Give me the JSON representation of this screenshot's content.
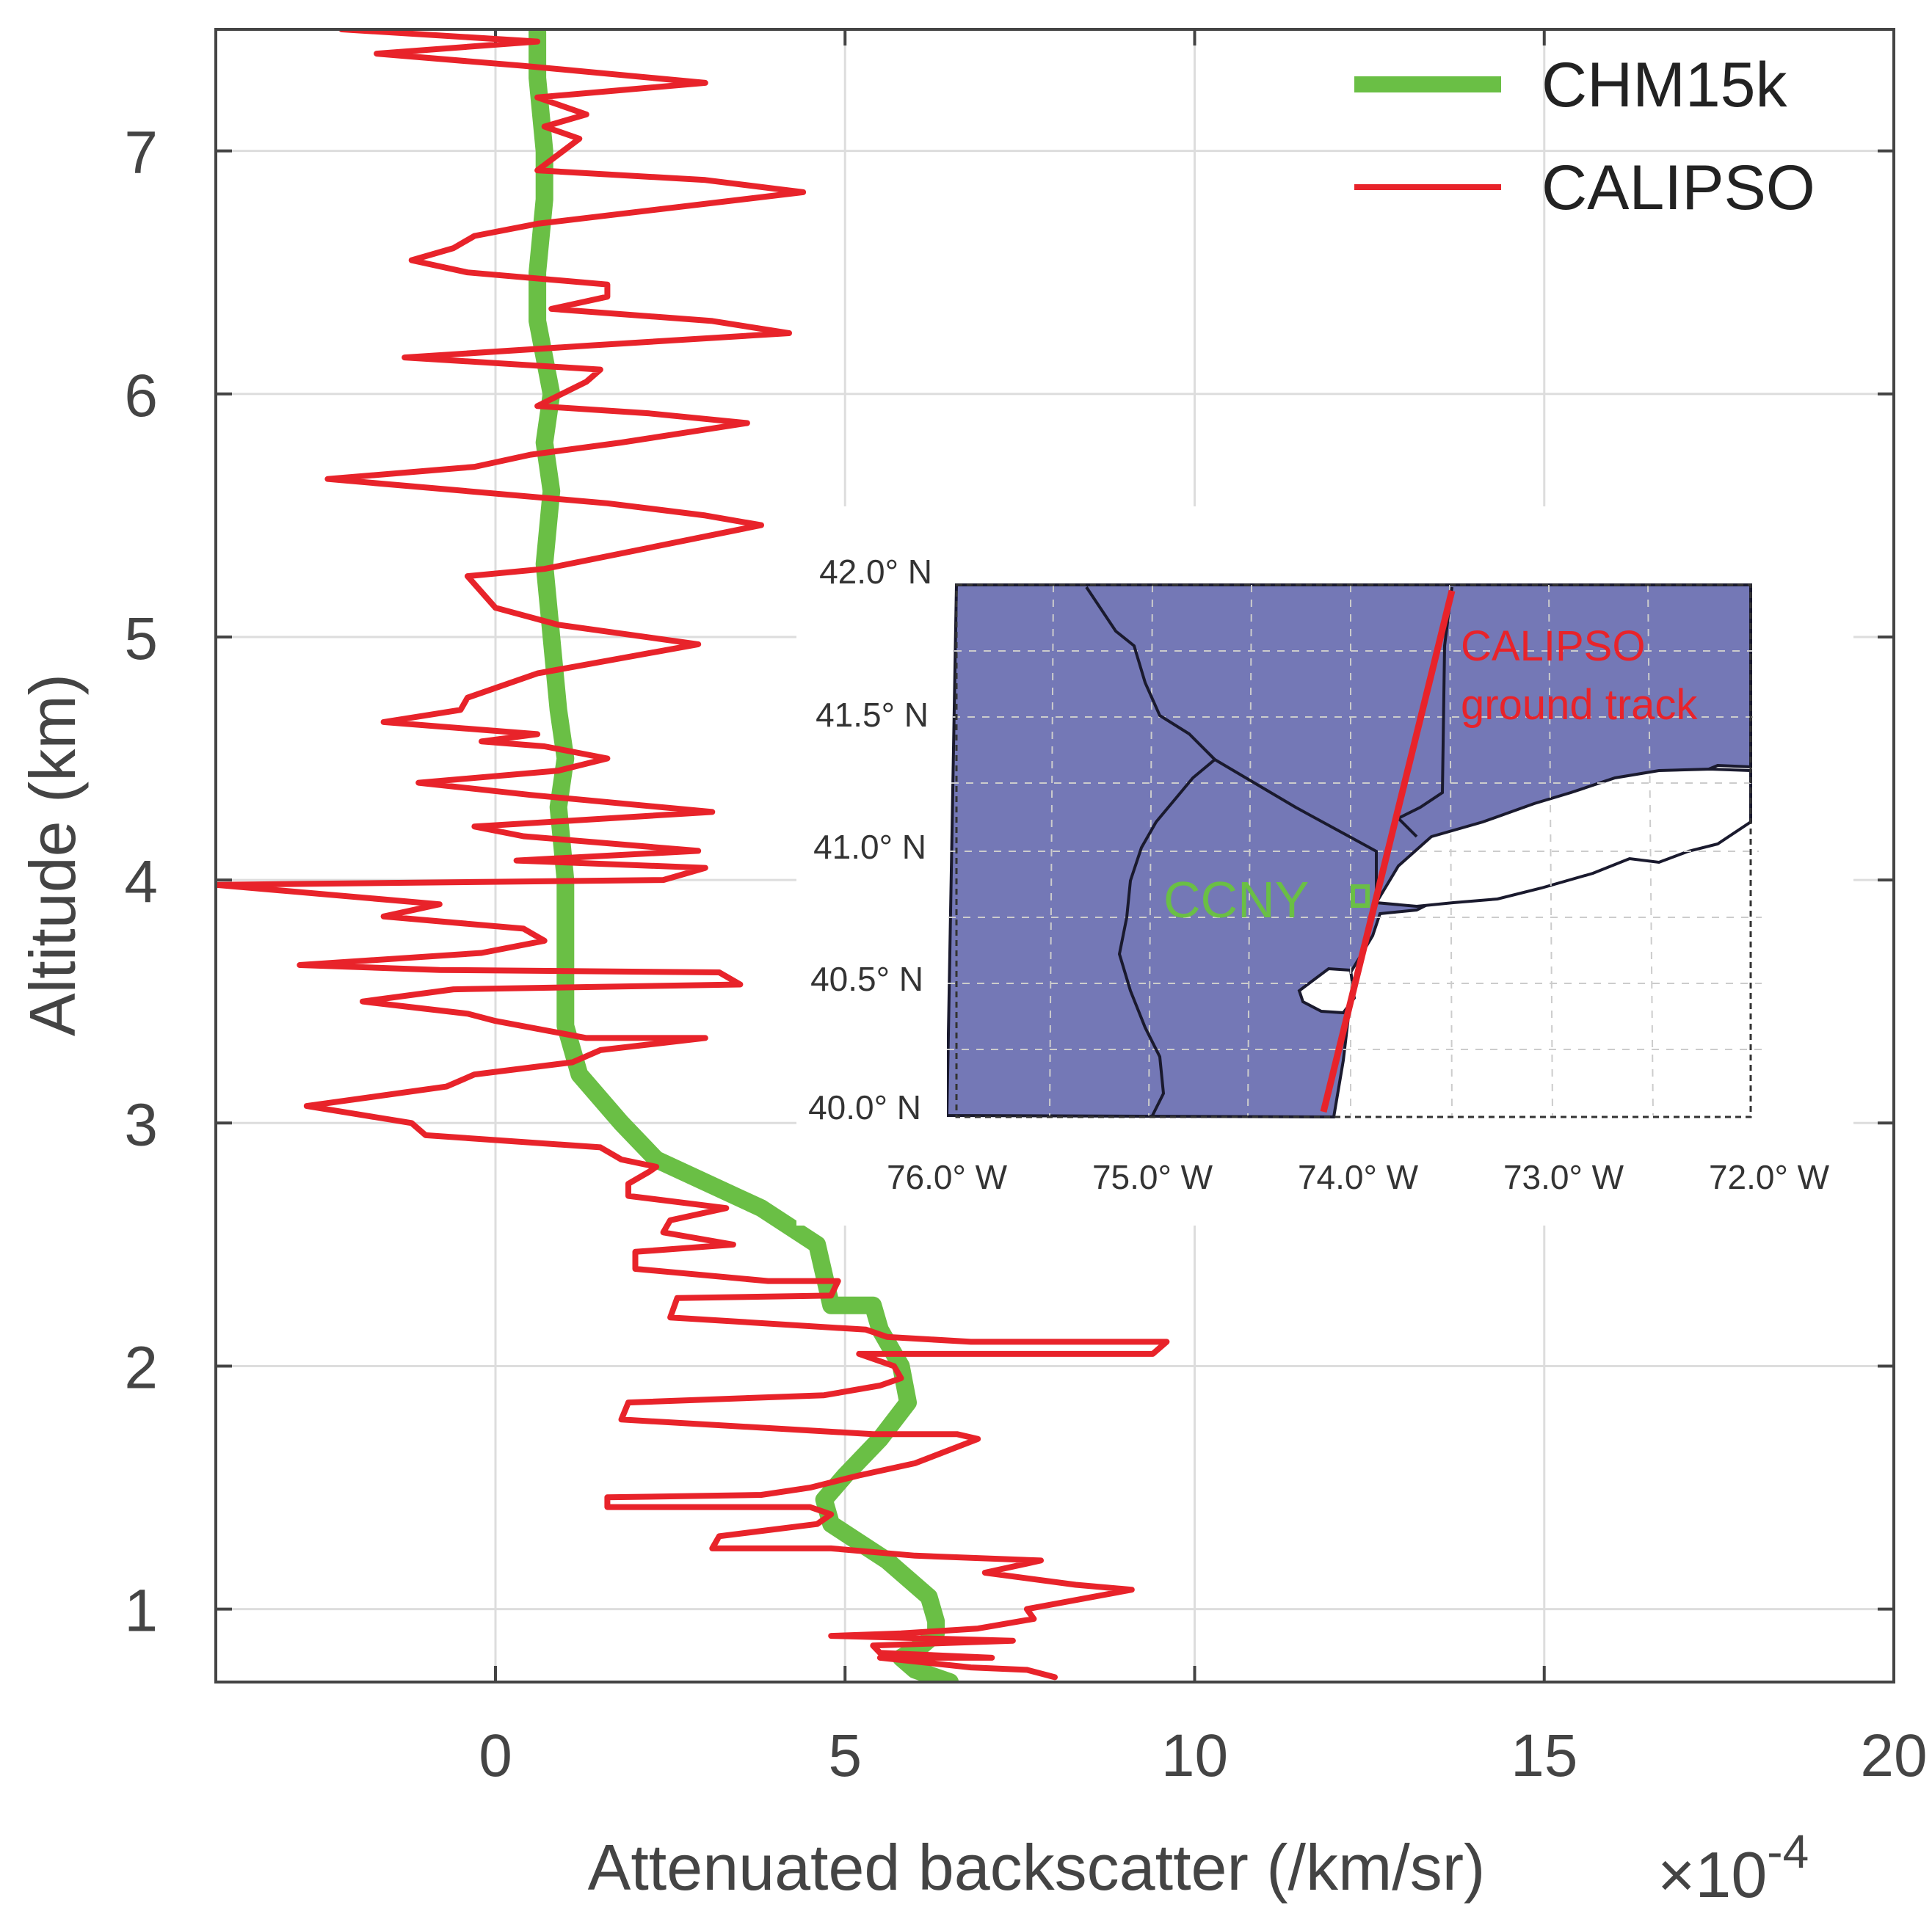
{
  "chart_data": [
    {
      "type": "line",
      "title": "",
      "xlabel": "Attenuated backscatter (/km/sr)",
      "x_exponent_label": "×10",
      "x_exponent_power": "-4",
      "ylabel": "Altitude (km)",
      "xlim": [
        -4.0,
        20.0
      ],
      "ylim": [
        0.7,
        7.5
      ],
      "xticks": [
        0,
        5,
        10,
        15,
        20
      ],
      "yticks": [
        1,
        2,
        3,
        4,
        5,
        6,
        7
      ],
      "xtick_labels": [
        "0",
        "5",
        "10",
        "15",
        "20"
      ],
      "ytick_labels": [
        "1",
        "2",
        "3",
        "4",
        "5",
        "6",
        "7"
      ],
      "grid": true,
      "legend_position": "top-right",
      "series": [
        {
          "name": "CHM15k",
          "color": "#6abf45",
          "points": [
            [
              6.5,
              0.7
            ],
            [
              6.0,
              0.75
            ],
            [
              5.8,
              0.8
            ],
            [
              6.1,
              0.85
            ],
            [
              6.3,
              0.9
            ],
            [
              6.3,
              0.95
            ],
            [
              6.2,
              1.05
            ],
            [
              5.6,
              1.2
            ],
            [
              4.8,
              1.35
            ],
            [
              4.7,
              1.45
            ],
            [
              5.0,
              1.55
            ],
            [
              5.5,
              1.7
            ],
            [
              5.9,
              1.85
            ],
            [
              5.8,
              2.0
            ],
            [
              5.5,
              2.15
            ],
            [
              5.4,
              2.25
            ],
            [
              4.8,
              2.25
            ],
            [
              4.6,
              2.5
            ],
            [
              3.8,
              2.65
            ],
            [
              2.3,
              2.85
            ],
            [
              1.8,
              3.0
            ],
            [
              1.2,
              3.2
            ],
            [
              1.0,
              3.4
            ],
            [
              1.0,
              3.6
            ],
            [
              1.0,
              4.0
            ],
            [
              0.9,
              4.3
            ],
            [
              1.0,
              4.5
            ],
            [
              0.9,
              4.7
            ],
            [
              0.8,
              5.0
            ],
            [
              0.7,
              5.3
            ],
            [
              0.8,
              5.6
            ],
            [
              0.7,
              5.8
            ],
            [
              0.8,
              6.0
            ],
            [
              0.6,
              6.3
            ],
            [
              0.6,
              6.5
            ],
            [
              0.7,
              6.8
            ],
            [
              0.7,
              7.0
            ],
            [
              0.6,
              7.3
            ],
            [
              0.6,
              7.5
            ]
          ]
        },
        {
          "name": "CALIPSO",
          "color": "#e8232a",
          "points": [
            [
              8.0,
              0.72
            ],
            [
              7.6,
              0.75
            ],
            [
              6.8,
              0.76
            ],
            [
              5.5,
              0.8
            ],
            [
              7.1,
              0.8
            ],
            [
              5.5,
              0.82
            ],
            [
              5.4,
              0.85
            ],
            [
              7.4,
              0.87
            ],
            [
              4.8,
              0.89
            ],
            [
              5.8,
              0.9
            ],
            [
              6.9,
              0.92
            ],
            [
              7.7,
              0.96
            ],
            [
              7.6,
              1.0
            ],
            [
              9.1,
              1.08
            ],
            [
              8.3,
              1.1
            ],
            [
              7.0,
              1.15
            ],
            [
              7.8,
              1.2
            ],
            [
              6.0,
              1.22
            ],
            [
              4.8,
              1.25
            ],
            [
              3.1,
              1.25
            ],
            [
              3.2,
              1.3
            ],
            [
              4.6,
              1.35
            ],
            [
              4.8,
              1.39
            ],
            [
              4.5,
              1.42
            ],
            [
              1.6,
              1.42
            ],
            [
              1.6,
              1.46
            ],
            [
              3.8,
              1.47
            ],
            [
              4.5,
              1.5
            ],
            [
              5.2,
              1.55
            ],
            [
              6.0,
              1.6
            ],
            [
              6.9,
              1.7
            ],
            [
              6.6,
              1.72
            ],
            [
              5.4,
              1.72
            ],
            [
              1.8,
              1.78
            ],
            [
              1.9,
              1.85
            ],
            [
              4.7,
              1.88
            ],
            [
              5.5,
              1.92
            ],
            [
              5.8,
              1.95
            ],
            [
              5.7,
              2.0
            ],
            [
              5.2,
              2.05
            ],
            [
              9.4,
              2.05
            ],
            [
              9.6,
              2.1
            ],
            [
              6.8,
              2.1
            ],
            [
              5.6,
              2.12
            ],
            [
              5.3,
              2.15
            ],
            [
              2.5,
              2.2
            ],
            [
              2.6,
              2.28
            ],
            [
              4.8,
              2.29
            ],
            [
              4.9,
              2.35
            ],
            [
              3.9,
              2.35
            ],
            [
              2.0,
              2.4
            ],
            [
              2.0,
              2.47
            ],
            [
              3.4,
              2.5
            ],
            [
              2.4,
              2.55
            ],
            [
              2.5,
              2.6
            ],
            [
              3.3,
              2.65
            ],
            [
              1.9,
              2.7
            ],
            [
              1.9,
              2.75
            ],
            [
              2.2,
              2.8
            ],
            [
              2.3,
              2.82
            ],
            [
              1.8,
              2.85
            ],
            [
              1.5,
              2.9
            ],
            [
              -1.0,
              2.95
            ],
            [
              -1.2,
              3.0
            ],
            [
              -2.7,
              3.07
            ],
            [
              -0.7,
              3.15
            ],
            [
              -0.3,
              3.2
            ],
            [
              1.1,
              3.25
            ],
            [
              1.5,
              3.3
            ],
            [
              3.0,
              3.35
            ],
            [
              1.3,
              3.35
            ],
            [
              0.0,
              3.42
            ],
            [
              -0.4,
              3.45
            ],
            [
              -1.9,
              3.5
            ],
            [
              -0.6,
              3.55
            ],
            [
              3.5,
              3.57
            ],
            [
              3.2,
              3.62
            ],
            [
              -0.8,
              3.63
            ],
            [
              -2.8,
              3.65
            ],
            [
              -0.2,
              3.7
            ],
            [
              0.7,
              3.75
            ],
            [
              0.4,
              3.8
            ],
            [
              -1.6,
              3.85
            ],
            [
              -0.8,
              3.9
            ],
            [
              -4.0,
              3.98
            ],
            [
              2.4,
              4.0
            ],
            [
              3.0,
              4.05
            ],
            [
              0.3,
              4.08
            ],
            [
              2.9,
              4.12
            ],
            [
              0.4,
              4.18
            ],
            [
              -0.3,
              4.22
            ],
            [
              3.1,
              4.28
            ],
            [
              0.5,
              4.35
            ],
            [
              -1.1,
              4.4
            ],
            [
              0.9,
              4.45
            ],
            [
              1.6,
              4.5
            ],
            [
              0.7,
              4.55
            ],
            [
              -0.2,
              4.57
            ],
            [
              0.6,
              4.6
            ],
            [
              -1.6,
              4.65
            ],
            [
              -0.5,
              4.7
            ],
            [
              -0.4,
              4.75
            ],
            [
              0.6,
              4.85
            ],
            [
              2.9,
              4.97
            ],
            [
              0.9,
              5.05
            ],
            [
              0.0,
              5.12
            ],
            [
              -0.4,
              5.25
            ],
            [
              0.7,
              5.28
            ],
            [
              3.8,
              5.46
            ],
            [
              3.0,
              5.5
            ],
            [
              1.6,
              5.55
            ],
            [
              -2.4,
              5.65
            ],
            [
              -0.3,
              5.7
            ],
            [
              0.5,
              5.75
            ],
            [
              1.8,
              5.8
            ],
            [
              3.6,
              5.88
            ],
            [
              2.2,
              5.92
            ],
            [
              0.6,
              5.95
            ],
            [
              1.3,
              6.05
            ],
            [
              1.5,
              6.1
            ],
            [
              -1.3,
              6.15
            ],
            [
              1.4,
              6.2
            ],
            [
              4.2,
              6.25
            ],
            [
              3.1,
              6.3
            ],
            [
              0.8,
              6.35
            ],
            [
              1.6,
              6.4
            ],
            [
              1.6,
              6.45
            ],
            [
              -0.4,
              6.5
            ],
            [
              -1.2,
              6.55
            ],
            [
              -0.6,
              6.6
            ],
            [
              -0.3,
              6.65
            ],
            [
              0.6,
              6.7
            ],
            [
              4.4,
              6.83
            ],
            [
              3.0,
              6.88
            ],
            [
              0.6,
              6.92
            ],
            [
              1.2,
              7.05
            ],
            [
              0.7,
              7.1
            ],
            [
              1.3,
              7.15
            ],
            [
              0.6,
              7.22
            ],
            [
              3.0,
              7.28
            ],
            [
              0.4,
              7.35
            ],
            [
              -1.7,
              7.4
            ],
            [
              0.6,
              7.45
            ],
            [
              -2.2,
              7.5
            ]
          ]
        }
      ]
    },
    {
      "type": "map",
      "title": "",
      "x_tick_labels": [
        "76.0° W",
        "75.0° W",
        "74.0° W",
        "73.0° W",
        "72.0° W"
      ],
      "y_tick_labels": [
        "42.0° N",
        "41.5° N",
        "41.0° N",
        "40.5° N",
        "40.0° N"
      ],
      "lon_range": [
        -76.0,
        -72.0
      ],
      "lat_range": [
        40.0,
        42.0
      ],
      "land_color": "#7478b6",
      "station_label": "CCNY",
      "station_color": "#6abf45",
      "track_label_line1": "CALIPSO",
      "track_label_line2": "ground track",
      "track_color": "#e8232a"
    }
  ]
}
